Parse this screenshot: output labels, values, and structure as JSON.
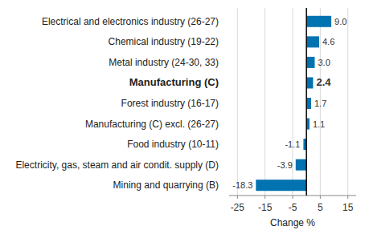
{
  "chart_data": {
    "type": "bar",
    "orientation": "horizontal",
    "categories": [
      "Electrical and electronics industry (26-27)",
      "Chemical industry (19-22)",
      "Metal industry (24-30, 33)",
      "Manufacturing (C)",
      "Forest industry (16-17)",
      "Manufacturing (C) excl. (26-27)",
      "Food industry (10-11)",
      "Electricity, gas, steam and air condit. supply (D)",
      "Mining and quarrying (B)"
    ],
    "values": [
      9.0,
      4.6,
      3.0,
      2.4,
      1.7,
      1.1,
      -1.1,
      -3.9,
      -18.3
    ],
    "value_labels": [
      "9.0",
      "4.6",
      "3.0",
      "2.4",
      "1.7",
      "1.1",
      "-1.1",
      "-3.9",
      "-18.3"
    ],
    "color": "#0073b0",
    "x_label": "Change %",
    "xlim": [
      -28,
      18
    ],
    "xticks": [
      -25,
      -15,
      -5,
      5,
      15
    ],
    "grid": true,
    "data_labels": true
  }
}
